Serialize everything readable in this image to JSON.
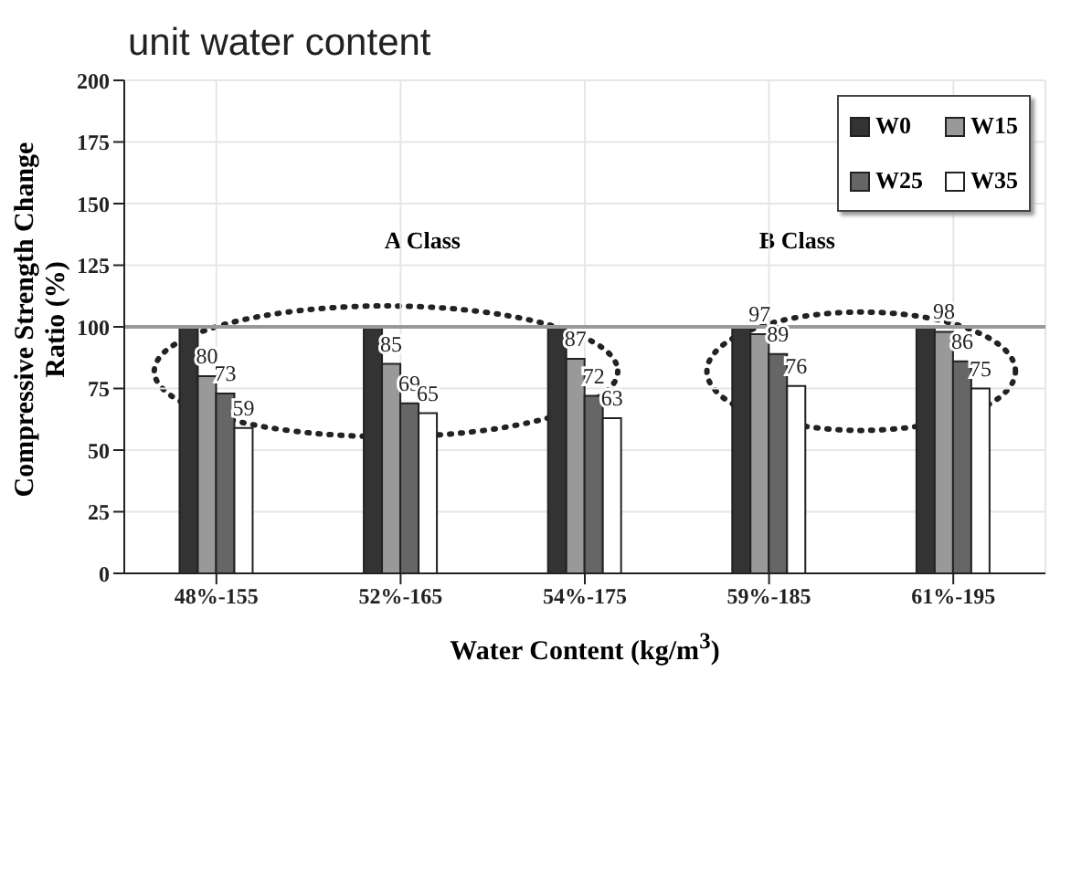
{
  "chart_data": {
    "type": "bar",
    "title": "unit water content",
    "xlabel": "Water Content (kg/m$^{3}$)",
    "ylabel": "Compressive Strength Change Ratio (%)",
    "categories": [
      "48%-155",
      "52%-165",
      "54%-175",
      "59%-185",
      "61%-195"
    ],
    "series": [
      {
        "name": "W0",
        "color": "#333333",
        "values": [
          100,
          100,
          100,
          100,
          100
        ]
      },
      {
        "name": "W15",
        "color": "#999999",
        "values": [
          80,
          85,
          87,
          97,
          98
        ],
        "value_labels": [
          "80",
          "85",
          "87",
          "97",
          "98"
        ]
      },
      {
        "name": "W25",
        "color": "#666666",
        "values": [
          73,
          69,
          72,
          89,
          86
        ],
        "value_labels": [
          "73",
          "69",
          "72",
          "89",
          "86"
        ]
      },
      {
        "name": "W35",
        "color": "#ffffff",
        "values": [
          59,
          65,
          63,
          76,
          75
        ],
        "value_labels": [
          "59",
          "65",
          "63",
          "76",
          "75"
        ]
      }
    ],
    "ylim": [
      0,
      200
    ],
    "yticks": [
      0,
      25,
      50,
      75,
      100,
      125,
      150,
      175,
      200
    ],
    "grid": true,
    "legend": "top right",
    "ref_lines": [
      {
        "axis": "y",
        "value": 100,
        "color": "#999999"
      }
    ],
    "annotations": [
      "A Class",
      "B Class"
    ]
  }
}
